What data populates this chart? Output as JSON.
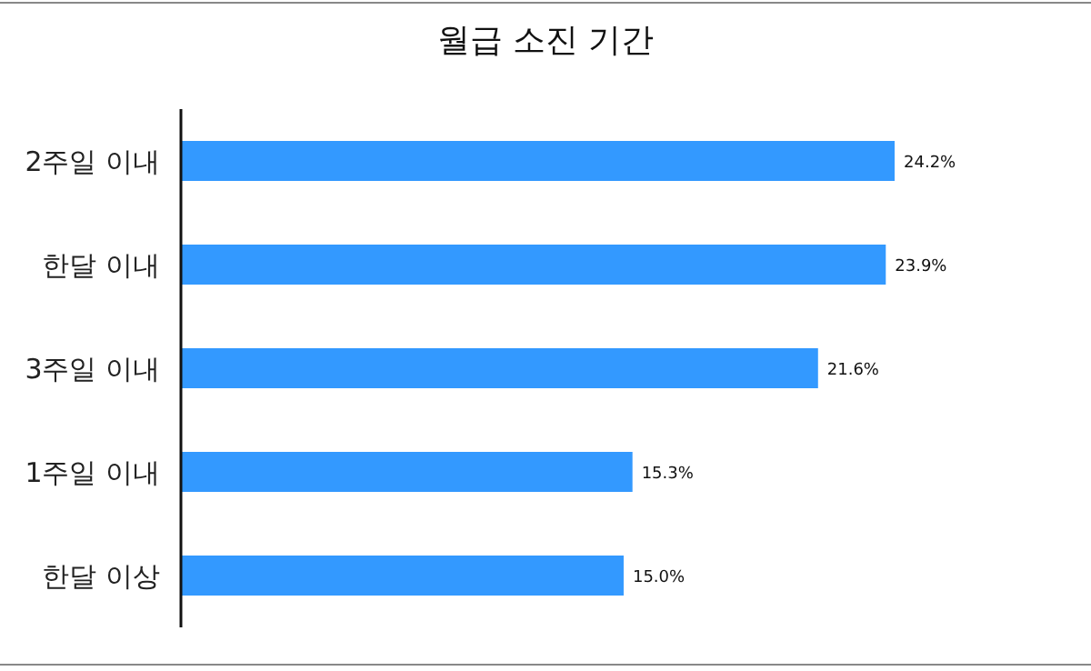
{
  "chart_data": {
    "type": "bar",
    "orientation": "horizontal",
    "title": "월급 소진 기간",
    "categories": [
      "2주일 이내",
      "한달 이내",
      "3주일 이내",
      "1주일 이내",
      "한달 이상"
    ],
    "values": [
      24.2,
      23.9,
      21.6,
      15.3,
      15.0
    ],
    "value_labels": [
      "24.2%",
      "23.9%",
      "21.6%",
      "15.3%",
      "15.0%"
    ],
    "color": "#3399ff"
  }
}
